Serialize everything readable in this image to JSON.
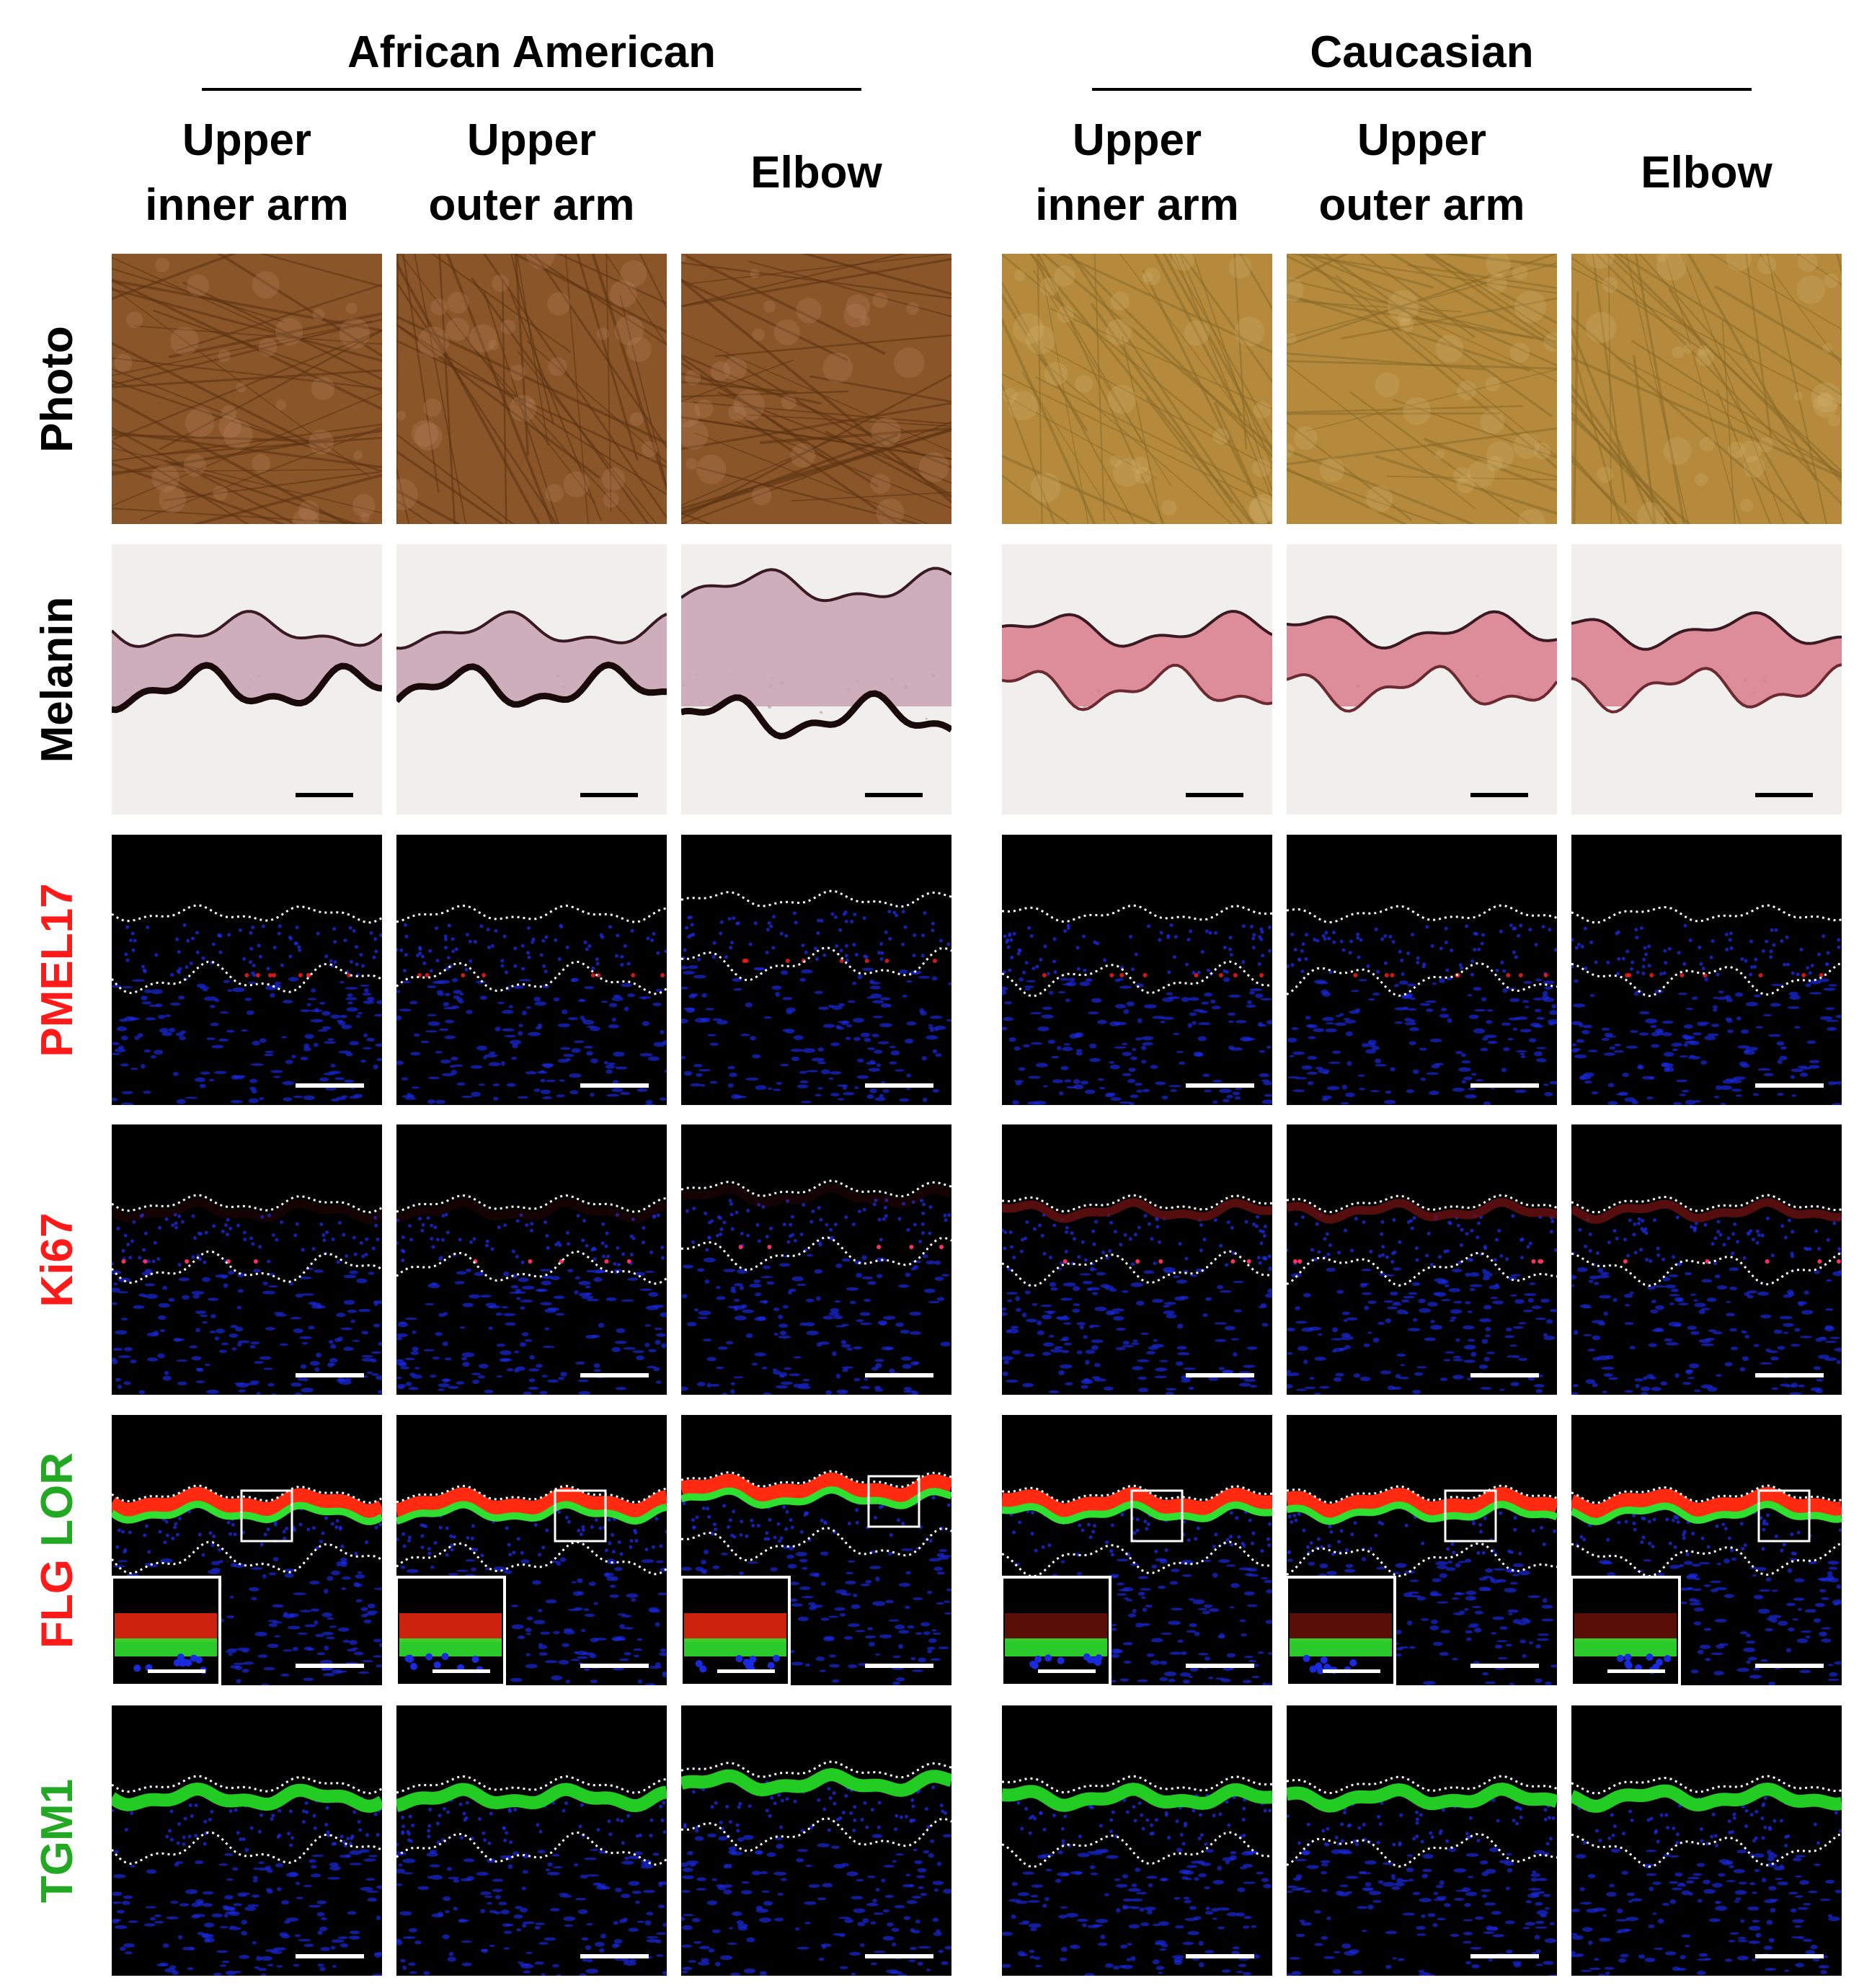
{
  "groups": [
    {
      "title": "African American"
    },
    {
      "title": "Caucasian"
    }
  ],
  "columns": [
    {
      "l1": "Upper",
      "l2": "inner arm"
    },
    {
      "l1": "Upper",
      "l2": "outer arm"
    },
    {
      "l1": "",
      "l2": "Elbow"
    },
    {
      "l1": "Upper",
      "l2": "inner arm"
    },
    {
      "l1": "Upper",
      "l2": "outer arm"
    },
    {
      "l1": "",
      "l2": "Elbow"
    }
  ],
  "rows": [
    {
      "type": "photo",
      "parts": [
        {
          "text": "Photo",
          "color": "#000000"
        }
      ]
    },
    {
      "type": "melanin",
      "parts": [
        {
          "text": "Melanin",
          "color": "#000000"
        }
      ]
    },
    {
      "type": "pmel",
      "parts": [
        {
          "text": "PMEL17",
          "color": "#ff1a1a"
        }
      ]
    },
    {
      "type": "ki67",
      "parts": [
        {
          "text": "Ki67",
          "color": "#ff1a1a"
        }
      ]
    },
    {
      "type": "flglor",
      "parts": [
        {
          "text": "FLG",
          "color": "#ff1a1a"
        },
        {
          "text": " ",
          "color": "#000000"
        },
        {
          "text": "LOR",
          "color": "#22a822"
        }
      ]
    },
    {
      "type": "tgm1",
      "parts": [
        {
          "text": "TGM1",
          "color": "#22a822"
        }
      ]
    }
  ],
  "colors": {
    "photo_african_american": "#8a5528",
    "photo_caucasian": "#b58a3c",
    "melanin_background": "#f1eeee",
    "nucleus_blue": "#1a2adf",
    "pmel_red": "#ff2020",
    "flg_red": "#ff2a10",
    "lor_green": "#30e030",
    "tgm1_green": "#22cc22",
    "outline": "#ffffff"
  }
}
